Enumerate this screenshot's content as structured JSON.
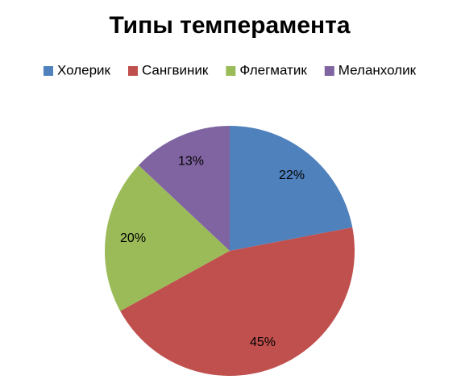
{
  "chart_data": {
    "type": "pie",
    "title": "Типы темперамента",
    "categories": [
      "Холерик",
      "Сангвиник",
      "Флегматик",
      "Меланхолик"
    ],
    "values": [
      22,
      45,
      20,
      13
    ],
    "value_labels": [
      "22%",
      "45%",
      "20%",
      "13%"
    ],
    "colors": [
      "#4f81bd",
      "#c0504d",
      "#9bbb59",
      "#8064a2"
    ],
    "legend": "top"
  }
}
